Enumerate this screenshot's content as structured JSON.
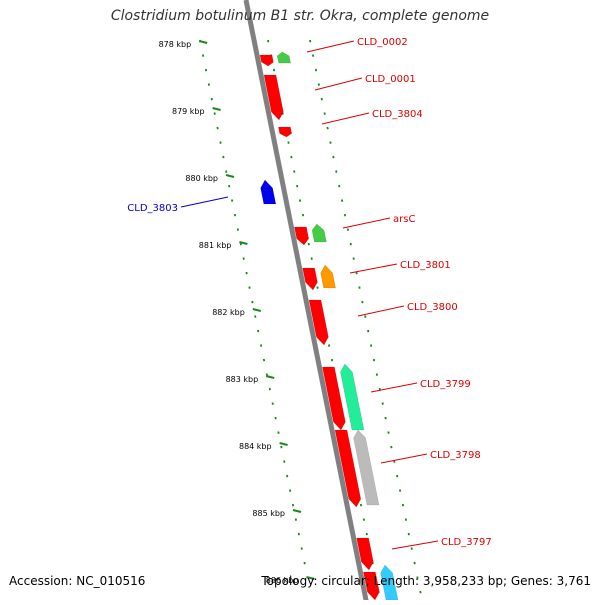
{
  "title": "Clostridium botulinum B1 str. Okra, complete genome",
  "footer": {
    "accession": "Accession: NC_010516",
    "topology": "Topology: circular; Length: 3,958,233 bp; Genes: 3,761"
  },
  "colors": {
    "backbone": "#808080",
    "ruler_tick": "#1a8a1a",
    "gene_red": "#ff0000",
    "gene_green": "#44cc44",
    "gene_orange": "#ff9900",
    "gene_blue": "#0000ee",
    "gene_teal": "#22ee99",
    "gene_grey": "#bbbbbb",
    "gene_cyan": "#33ccff",
    "label_red": "#dd0000",
    "label_blue": "#0000cc"
  },
  "ruler": {
    "unit": "kbp",
    "labels": [
      "878 kbp",
      "879 kbp",
      "880 kbp",
      "881 kbp",
      "882 kbp",
      "883 kbp",
      "884 kbp",
      "885 kbp",
      "886 kbp"
    ]
  },
  "genes": [
    {
      "name": "CLD_0002",
      "label_color": "label_red"
    },
    {
      "name": "CLD_0001",
      "label_color": "label_red"
    },
    {
      "name": "CLD_3804",
      "label_color": "label_red"
    },
    {
      "name": "CLD_3803",
      "label_color": "label_blue"
    },
    {
      "name": "arsC",
      "label_color": "label_red"
    },
    {
      "name": "CLD_3801",
      "label_color": "label_red"
    },
    {
      "name": "CLD_3800",
      "label_color": "label_red"
    },
    {
      "name": "CLD_3799",
      "label_color": "label_red"
    },
    {
      "name": "CLD_3798",
      "label_color": "label_red"
    },
    {
      "name": "CLD_3797",
      "label_color": "label_red"
    }
  ]
}
